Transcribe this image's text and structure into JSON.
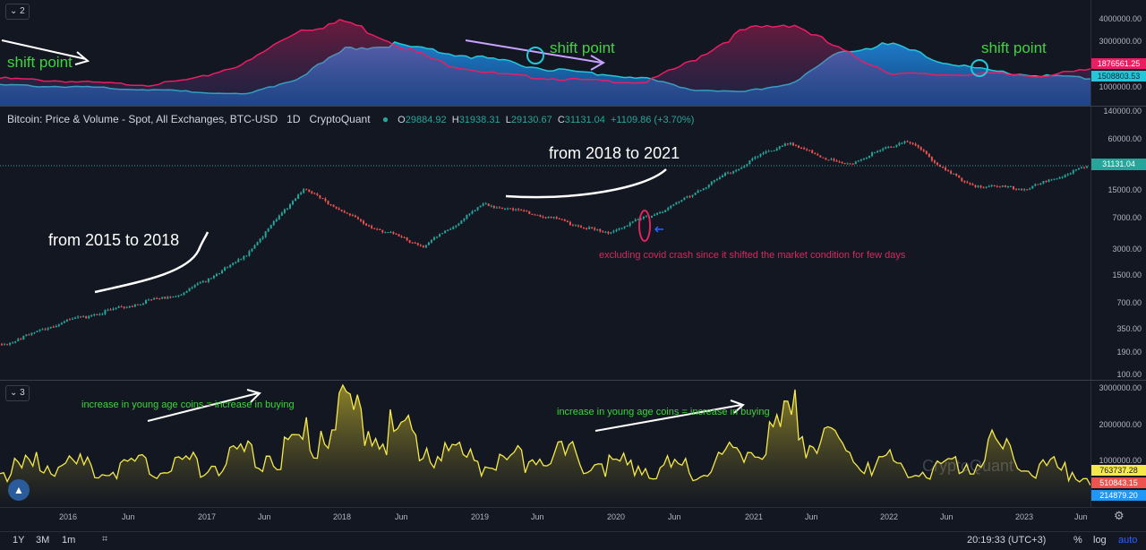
{
  "top_pane": {
    "label": "2",
    "ticks": [
      "4000000.00",
      "3000000.00",
      "1000000.00"
    ],
    "price_tag_red": "1876561.25",
    "price_tag_blue": "1508803.53",
    "annotations": [
      "shift point",
      "shift point",
      "shift point"
    ]
  },
  "main_pane": {
    "title": "Bitcoin: Price & Volume - Spot, All Exchanges, BTC-USD",
    "interval": "1D",
    "source": "CryptoQuant",
    "ohlc": {
      "o": "29884.92",
      "h": "31938.31",
      "l": "29130.67",
      "c": "31131.04",
      "chg": "+1109.86 (+3.70%)"
    },
    "o_label": "O",
    "h_label": "H",
    "l_label": "L",
    "c_label": "C",
    "ticks": [
      "140000.00",
      "60000.00",
      "31131.04",
      "15000.00",
      "7000.00",
      "3000.00",
      "1500.00",
      "700.00",
      "350.00",
      "190.00",
      "100.00"
    ],
    "last_price": "31131.04",
    "annotations": {
      "a2015": "from 2015 to 2018",
      "a2018": "from 2018 to 2021",
      "covid": "excluding covid crash since it shifted the market condition for few days"
    }
  },
  "bottom_pane": {
    "label": "3",
    "ticks": [
      "3000000.00",
      "2000000.00",
      "1000000.00"
    ],
    "tag_yellow": "763737.28",
    "tag_red": "510843.15",
    "tag_blue": "214879.20",
    "watermark": "CryptoQuant",
    "annotations": [
      "increase in young age coins = increase in buying",
      "increase in young age coins = increase in buying"
    ]
  },
  "x_axis": [
    "2016",
    "Jun",
    "2017",
    "Jun",
    "2018",
    "Jun",
    "2019",
    "Jun",
    "2020",
    "Jun",
    "2021",
    "Jun",
    "2022",
    "Jun",
    "2023",
    "Jun"
  ],
  "bottom_bar": {
    "ranges": [
      "1Y",
      "3M",
      "1m"
    ],
    "time": "20:19:33 (UTC+3)",
    "percent": "%",
    "log": "log",
    "auto": "auto"
  },
  "colors": {
    "red_series": "#e91e63",
    "blue_series": "#26c6da",
    "yellow_series": "#f5e94b",
    "up": "#26a69a",
    "down": "#ef5350",
    "annotation_green": "#3cd63c",
    "annotation_red": "#e0245e"
  },
  "chart_data": [
    {
      "type": "area",
      "pane": "top",
      "series": [
        {
          "name": "red",
          "values": [
            1500000,
            1400000,
            1300000,
            1200000,
            1500000,
            2200000,
            3600000,
            4000000,
            3000000,
            2100000,
            1700000,
            1500000,
            1400000,
            1300000,
            2300000,
            3600000,
            3900000,
            2700000,
            1700000,
            1650000,
            1700000,
            1600000,
            1876561
          ]
        },
        {
          "name": "blue",
          "values": [
            1200000,
            1150000,
            1100000,
            1000000,
            900000,
            800000,
            1500000,
            2800000,
            3000000,
            2600000,
            2300000,
            1900000,
            1700000,
            1500000,
            1000000,
            900000,
            1300000,
            2700000,
            3000000,
            2200000,
            1800000,
            1600000,
            1508803
          ]
        }
      ]
    },
    {
      "type": "candlestick",
      "pane": "main",
      "scale": "log",
      "x": [
        "2015-08",
        "2016-01",
        "2016-06",
        "2017-01",
        "2017-06",
        "2017-12",
        "2018-06",
        "2018-12",
        "2019-06",
        "2020-01",
        "2020-03",
        "2020-06",
        "2020-12",
        "2021-04",
        "2021-07",
        "2021-11",
        "2022-06",
        "2022-12",
        "2023-06"
      ],
      "close": [
        230,
        430,
        650,
        950,
        2500,
        17000,
        6500,
        3500,
        11000,
        8000,
        5000,
        9500,
        25000,
        60000,
        32000,
        65000,
        19000,
        16800,
        31131.04
      ]
    },
    {
      "type": "area",
      "pane": "bottom",
      "series": [
        {
          "name": "yellow",
          "values": [
            900000,
            1200000,
            1000000,
            1100000,
            1200000,
            1400000,
            1800000,
            3000000,
            2200000,
            1600000,
            1100000,
            1600000,
            1200000,
            1100000,
            1000000,
            1500000,
            2700000,
            1500000,
            1200000,
            1000000,
            1700000,
            1100000,
            763737
          ]
        }
      ]
    }
  ]
}
